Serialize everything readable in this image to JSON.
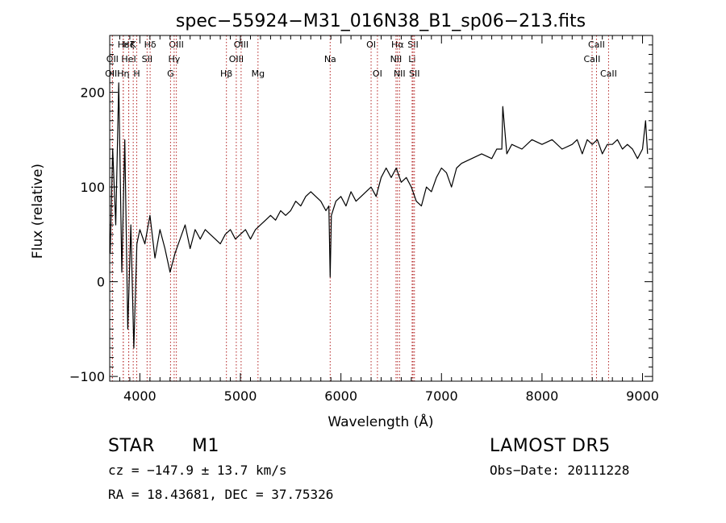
{
  "chart_data": {
    "type": "line",
    "title": "spec−55924−M31_016N38_B1_sp06−213.fits",
    "xlabel": "Wavelength (Å)",
    "ylabel": "Flux (relative)",
    "xlim": [
      3700,
      9100
    ],
    "ylim": [
      -105,
      260
    ],
    "xticks": [
      4000,
      5000,
      6000,
      7000,
      8000,
      9000
    ],
    "xtick_labels": [
      "4000",
      "5000",
      "6000",
      "7000",
      "8000",
      "9000"
    ],
    "yticks": [
      -100,
      0,
      100,
      200
    ],
    "ytick_labels": [
      "−100",
      "0",
      "100",
      "200"
    ],
    "grid": false,
    "line_color": "#000000",
    "marker_color": "#b22222",
    "lines": [
      {
        "label": "Hε",
        "x": 3835,
        "row": 0
      },
      {
        "label": "OII",
        "x": 3727,
        "row": 1
      },
      {
        "label": "OIII",
        "x": 3727,
        "row": 2
      },
      {
        "label": "Hζ",
        "x": 3889,
        "row": 0
      },
      {
        "label": "K",
        "x": 3934,
        "row": 0
      },
      {
        "label": "HeI",
        "x": 3889,
        "row": 1
      },
      {
        "label": "Hη",
        "x": 3835,
        "row": 2
      },
      {
        "label": "H",
        "x": 3969,
        "row": 2
      },
      {
        "label": "SII",
        "x": 4072,
        "row": 1
      },
      {
        "label": "Hδ",
        "x": 4102,
        "row": 0
      },
      {
        "label": "OIII",
        "x": 4363,
        "row": 0
      },
      {
        "label": "Hγ",
        "x": 4341,
        "row": 1
      },
      {
        "label": "G",
        "x": 4305,
        "row": 2
      },
      {
        "label": "Hβ",
        "x": 4861,
        "row": 2
      },
      {
        "label": "OIII",
        "x": 5007,
        "row": 0
      },
      {
        "label": "OIII",
        "x": 4959,
        "row": 1
      },
      {
        "label": "Mg",
        "x": 5175,
        "row": 2
      },
      {
        "label": "Na",
        "x": 5893,
        "row": 1
      },
      {
        "label": "OI",
        "x": 6300,
        "row": 0
      },
      {
        "label": "OI",
        "x": 6363,
        "row": 2
      },
      {
        "label": "Hα",
        "x": 6563,
        "row": 0
      },
      {
        "label": "NII",
        "x": 6548,
        "row": 1
      },
      {
        "label": "NII",
        "x": 6583,
        "row": 2
      },
      {
        "label": "SII",
        "x": 6717,
        "row": 0
      },
      {
        "label": "Li",
        "x": 6708,
        "row": 1
      },
      {
        "label": "SII",
        "x": 6731,
        "row": 2
      },
      {
        "label": "CaII",
        "x": 8542,
        "row": 0
      },
      {
        "label": "CaII",
        "x": 8498,
        "row": 1
      },
      {
        "label": "CaII",
        "x": 8662,
        "row": 2
      }
    ],
    "series": [
      {
        "x": [
          3705,
          3730,
          3760,
          3790,
          3820,
          3850,
          3880,
          3910,
          3940,
          3970,
          4000,
          4050,
          4100,
          4150,
          4200,
          4250,
          4300,
          4350,
          4400,
          4450,
          4500,
          4550,
          4600,
          4650,
          4700,
          4750,
          4800,
          4850,
          4900,
          4950,
          5000,
          5050,
          5100,
          5150,
          5200,
          5250,
          5300,
          5350,
          5400,
          5450,
          5500,
          5550,
          5600,
          5650,
          5700,
          5750,
          5800,
          5850,
          5880,
          5893,
          5905,
          5950,
          6000,
          6050,
          6100,
          6150,
          6200,
          6250,
          6300,
          6350,
          6400,
          6450,
          6500,
          6550,
          6600,
          6650,
          6700,
          6750,
          6800,
          6850,
          6900,
          6950,
          7000,
          7050,
          7100,
          7150,
          7200,
          7300,
          7400,
          7500,
          7550,
          7600,
          7610,
          7650,
          7700,
          7800,
          7900,
          8000,
          8100,
          8200,
          8300,
          8350,
          8400,
          8450,
          8500,
          8550,
          8600,
          8650,
          8700,
          8750,
          8800,
          8850,
          8900,
          8950,
          9000,
          9030,
          9050
        ],
        "y": [
          30,
          140,
          60,
          210,
          10,
          150,
          -50,
          60,
          -70,
          40,
          55,
          40,
          70,
          25,
          55,
          35,
          10,
          30,
          45,
          60,
          35,
          55,
          45,
          55,
          50,
          45,
          40,
          50,
          55,
          45,
          50,
          55,
          45,
          55,
          60,
          65,
          70,
          65,
          75,
          70,
          75,
          85,
          80,
          90,
          95,
          90,
          85,
          75,
          80,
          5,
          70,
          85,
          90,
          80,
          95,
          85,
          90,
          95,
          100,
          90,
          110,
          120,
          110,
          120,
          105,
          110,
          100,
          85,
          80,
          100,
          95,
          110,
          120,
          115,
          100,
          120,
          125,
          130,
          135,
          130,
          140,
          140,
          185,
          135,
          145,
          140,
          150,
          145,
          150,
          140,
          145,
          150,
          135,
          150,
          145,
          150,
          135,
          145,
          145,
          150,
          140,
          145,
          140,
          130,
          140,
          170,
          135
        ]
      }
    ]
  },
  "info": {
    "object_type": "STAR",
    "subclass": "M1",
    "survey": "LAMOST DR5",
    "redshift": "cz = −147.9 ± 13.7 km/s",
    "obs_date": "Obs−Date: 20111228",
    "coords": "RA =  18.43681, DEC =  37.75326"
  }
}
